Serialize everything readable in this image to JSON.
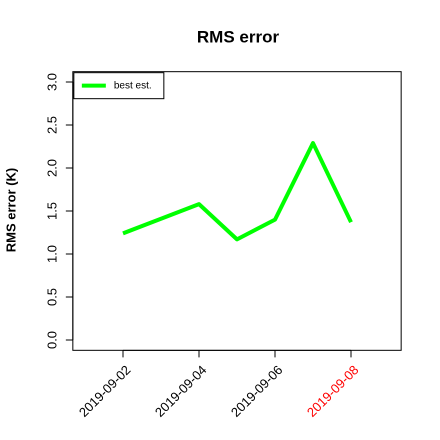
{
  "chart_data": {
    "type": "line",
    "title": "RMS error",
    "ylabel": "RMS error (K)",
    "x": [
      "2019-09-02",
      "2019-09-03",
      "2019-09-04",
      "2019-09-05",
      "2019-09-06",
      "2019-09-07",
      "2019-09-08"
    ],
    "series": [
      {
        "name": "best est.",
        "color": "#00ff00",
        "values": [
          1.24,
          1.41,
          1.58,
          1.17,
          1.4,
          2.29,
          1.37
        ]
      }
    ],
    "xlim": [
      "2019-09-01",
      "2019-09-09"
    ],
    "xticks": [
      "2019-09-02",
      "2019-09-04",
      "2019-09-06",
      "2019-09-08"
    ],
    "xtick_label_colors": [
      "#000000",
      "#000000",
      "#000000",
      "#ff0000"
    ],
    "ylim": [
      0,
      3
    ],
    "yticks": [
      {
        "value": 0,
        "label": "0.0"
      },
      0.5,
      {
        "value": 1,
        "label": "1.0"
      },
      1.5,
      {
        "value": 2,
        "label": "2.0"
      },
      2.5,
      {
        "value": 3,
        "label": "3.0"
      }
    ],
    "legend": "top-left"
  }
}
